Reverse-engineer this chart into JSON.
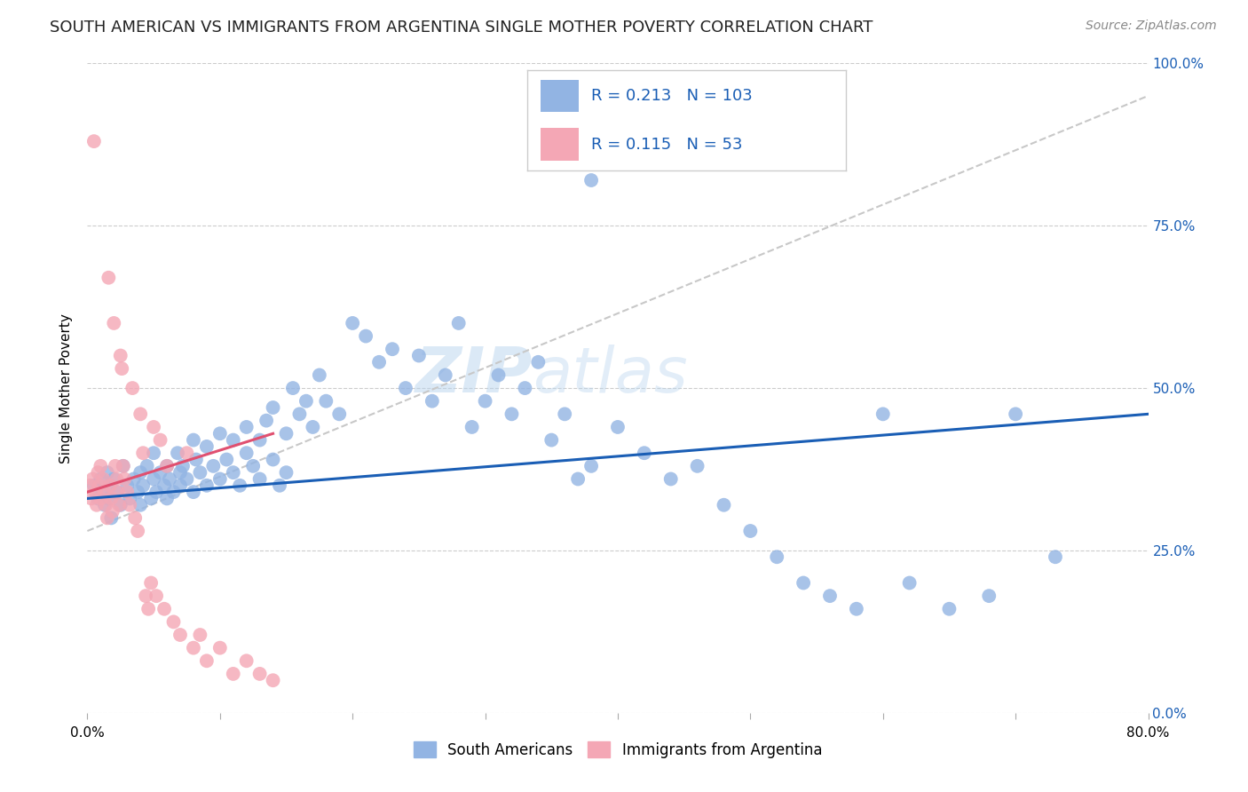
{
  "title": "SOUTH AMERICAN VS IMMIGRANTS FROM ARGENTINA SINGLE MOTHER POVERTY CORRELATION CHART",
  "source": "Source: ZipAtlas.com",
  "xlim": [
    0.0,
    0.8
  ],
  "ylim": [
    0.0,
    1.0
  ],
  "blue_R": 0.213,
  "blue_N": 103,
  "pink_R": 0.115,
  "pink_N": 53,
  "blue_color": "#92b4e3",
  "pink_color": "#f4a7b5",
  "blue_line_color": "#1a5eb5",
  "pink_line_color": "#e05070",
  "trend_line_color": "#c8c8c8",
  "watermark": "ZIPatlas",
  "legend_R_color": "#1a5eb5",
  "legend_N_color": "#e05070",
  "background_color": "#ffffff",
  "grid_color": "#cccccc",
  "title_fontsize": 13,
  "axis_label_fontsize": 11,
  "tick_fontsize": 11,
  "right_tick_color": "#1a5eb5",
  "blue_x": [
    0.005,
    0.008,
    0.01,
    0.012,
    0.013,
    0.015,
    0.016,
    0.017,
    0.018,
    0.02,
    0.022,
    0.025,
    0.027,
    0.03,
    0.032,
    0.035,
    0.038,
    0.04,
    0.04,
    0.042,
    0.045,
    0.048,
    0.05,
    0.05,
    0.052,
    0.055,
    0.058,
    0.06,
    0.06,
    0.062,
    0.065,
    0.068,
    0.07,
    0.07,
    0.072,
    0.075,
    0.08,
    0.08,
    0.082,
    0.085,
    0.09,
    0.09,
    0.095,
    0.1,
    0.1,
    0.105,
    0.11,
    0.11,
    0.115,
    0.12,
    0.12,
    0.125,
    0.13,
    0.13,
    0.135,
    0.14,
    0.14,
    0.145,
    0.15,
    0.15,
    0.155,
    0.16,
    0.165,
    0.17,
    0.175,
    0.18,
    0.19,
    0.2,
    0.21,
    0.22,
    0.23,
    0.24,
    0.25,
    0.26,
    0.27,
    0.28,
    0.29,
    0.3,
    0.31,
    0.32,
    0.33,
    0.34,
    0.35,
    0.36,
    0.37,
    0.38,
    0.38,
    0.4,
    0.42,
    0.44,
    0.46,
    0.48,
    0.5,
    0.52,
    0.54,
    0.56,
    0.58,
    0.6,
    0.62,
    0.65,
    0.68,
    0.7,
    0.73
  ],
  "blue_y": [
    0.35,
    0.33,
    0.36,
    0.34,
    0.32,
    0.37,
    0.33,
    0.35,
    0.3,
    0.36,
    0.34,
    0.32,
    0.38,
    0.35,
    0.33,
    0.36,
    0.34,
    0.32,
    0.37,
    0.35,
    0.38,
    0.33,
    0.36,
    0.4,
    0.34,
    0.37,
    0.35,
    0.33,
    0.38,
    0.36,
    0.34,
    0.4,
    0.37,
    0.35,
    0.38,
    0.36,
    0.42,
    0.34,
    0.39,
    0.37,
    0.35,
    0.41,
    0.38,
    0.36,
    0.43,
    0.39,
    0.37,
    0.42,
    0.35,
    0.4,
    0.44,
    0.38,
    0.42,
    0.36,
    0.45,
    0.39,
    0.47,
    0.35,
    0.43,
    0.37,
    0.5,
    0.46,
    0.48,
    0.44,
    0.52,
    0.48,
    0.46,
    0.6,
    0.58,
    0.54,
    0.56,
    0.5,
    0.55,
    0.48,
    0.52,
    0.6,
    0.44,
    0.48,
    0.52,
    0.46,
    0.5,
    0.54,
    0.42,
    0.46,
    0.36,
    0.82,
    0.38,
    0.44,
    0.4,
    0.36,
    0.38,
    0.32,
    0.28,
    0.24,
    0.2,
    0.18,
    0.16,
    0.46,
    0.2,
    0.16,
    0.18,
    0.46,
    0.24
  ],
  "pink_x": [
    0.002,
    0.003,
    0.004,
    0.005,
    0.006,
    0.007,
    0.008,
    0.009,
    0.01,
    0.01,
    0.012,
    0.013,
    0.014,
    0.015,
    0.016,
    0.017,
    0.018,
    0.019,
    0.02,
    0.021,
    0.022,
    0.023,
    0.024,
    0.025,
    0.026,
    0.027,
    0.028,
    0.03,
    0.032,
    0.034,
    0.036,
    0.038,
    0.04,
    0.042,
    0.044,
    0.046,
    0.048,
    0.05,
    0.052,
    0.055,
    0.058,
    0.06,
    0.065,
    0.07,
    0.075,
    0.08,
    0.085,
    0.09,
    0.1,
    0.11,
    0.12,
    0.13,
    0.14
  ],
  "pink_y": [
    0.35,
    0.33,
    0.36,
    0.88,
    0.34,
    0.32,
    0.37,
    0.35,
    0.33,
    0.38,
    0.36,
    0.34,
    0.32,
    0.3,
    0.67,
    0.35,
    0.33,
    0.31,
    0.6,
    0.38,
    0.36,
    0.34,
    0.32,
    0.55,
    0.53,
    0.38,
    0.36,
    0.34,
    0.32,
    0.5,
    0.3,
    0.28,
    0.46,
    0.4,
    0.18,
    0.16,
    0.2,
    0.44,
    0.18,
    0.42,
    0.16,
    0.38,
    0.14,
    0.12,
    0.4,
    0.1,
    0.12,
    0.08,
    0.1,
    0.06,
    0.08,
    0.06,
    0.05
  ]
}
